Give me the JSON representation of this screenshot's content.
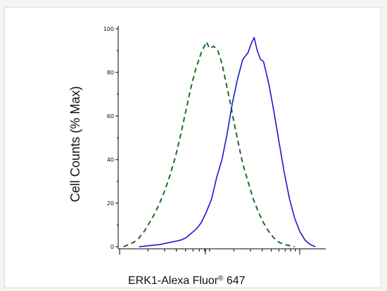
{
  "chart_data": {
    "type": "line",
    "title": "",
    "xlabel_text": "ERK1-Alexa Fluor",
    "xlabel_reg": "®",
    "xlabel_suffix": " 647",
    "ylabel": "Cell Counts (% Max)",
    "xscale": "log",
    "ylim": [
      0,
      100
    ],
    "yticks": [
      "0",
      "20",
      "40",
      "60",
      "80",
      "100"
    ],
    "grid": false,
    "legend": "none",
    "series": [
      {
        "style": "dashed",
        "color": "#1f6b1f",
        "x": [
          5,
          10,
          15,
          20,
          25,
          30,
          35,
          40,
          45,
          50,
          55,
          60,
          65,
          70,
          75,
          80,
          85,
          88,
          92,
          96,
          100,
          104,
          108,
          112,
          116,
          120,
          125,
          130,
          135,
          140,
          145,
          150,
          155,
          160,
          165,
          170
        ],
        "y": [
          0,
          1,
          2,
          4,
          7,
          11,
          15,
          20,
          26,
          33,
          41,
          51,
          62,
          73,
          82,
          89,
          94,
          91,
          92,
          90,
          84,
          75,
          66,
          56,
          47,
          38,
          30,
          22,
          16,
          11,
          7,
          4,
          2,
          1,
          0.5,
          0
        ]
      },
      {
        "style": "solid",
        "color": "#1a1acc",
        "x": [
          20,
          30,
          40,
          50,
          60,
          65,
          70,
          75,
          80,
          85,
          90,
          95,
          100,
          105,
          110,
          115,
          120,
          125,
          128,
          131,
          134,
          137,
          140,
          145,
          150,
          155,
          160,
          165,
          170,
          175,
          180,
          185,
          190
        ],
        "y": [
          0,
          0.5,
          1,
          2,
          3,
          4,
          6,
          8,
          11,
          16,
          22,
          32,
          40,
          52,
          66,
          77,
          86,
          89,
          93,
          96,
          90,
          86,
          85,
          75,
          62,
          48,
          34,
          22,
          13,
          7,
          3,
          1,
          0
        ]
      }
    ]
  }
}
